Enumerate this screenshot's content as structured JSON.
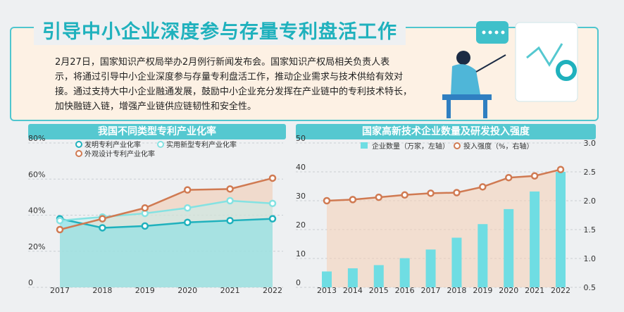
{
  "header": {
    "title": "引导中小企业深度参与存量专利盘活工作",
    "paragraph_lines": [
      "2月27日，国家知识产权局举办2月例行新闻发布会。国家知识产权局相关负责人表",
      "示，将通过引导中小企业深度参与存量专利盘活工作，推动企业需求与技术供给有效对",
      "接。通过支持大中小企业融通发展，鼓励中小企业充分发挥在产业链中的专利技术特长，",
      "加快融链入链，增强产业链供应链韧性和安全性。"
    ]
  },
  "colors": {
    "teal": "#1fb1bd",
    "banner": "#55c8d0",
    "orange_line": "#d07a52",
    "light_teal_line": "#84e2e2",
    "bar": "#6fdde3",
    "card_bg": "#fdf1e4"
  },
  "chart_data": [
    {
      "type": "line",
      "title": "我国不同类型专利产业化率",
      "x": [
        "2017",
        "2018",
        "2019",
        "2020",
        "2021",
        "2022"
      ],
      "yticks": [
        "0",
        "20%",
        "40%",
        "60%",
        "80%"
      ],
      "ylim": [
        0,
        80
      ],
      "legend": "top",
      "series": [
        {
          "name": "发明专利产业化率",
          "values": [
            38,
            33,
            34,
            36,
            37,
            38
          ]
        },
        {
          "name": "实用新型专利产业化率",
          "values": [
            37,
            39,
            41,
            44,
            48,
            46.5
          ]
        },
        {
          "name": "外观设计专利产业化率",
          "values": [
            32,
            38,
            44,
            54,
            54.5,
            60.5
          ]
        }
      ]
    },
    {
      "type": "bar",
      "title": "国家高新技术企业数量及研发投入强度",
      "categories": [
        "2013",
        "2014",
        "2015",
        "2016",
        "2017",
        "2018",
        "2019",
        "2020",
        "2021",
        "2022"
      ],
      "left_axis_ticks": [
        "0",
        "10",
        "20",
        "30",
        "40",
        "50"
      ],
      "right_axis_ticks": [
        "0.5",
        "1.0",
        "1.5",
        "2.0",
        "2.5",
        "3.0"
      ],
      "ylim_left": [
        0,
        50
      ],
      "ylim_right": [
        0.5,
        3.0
      ],
      "legend": "top",
      "series": [
        {
          "name": "企业数量（万家，左轴）",
          "type": "bar",
          "axis": "left",
          "values": [
            5.5,
            6.6,
            7.7,
            10.1,
            13.1,
            17.2,
            21.9,
            27.1,
            33.2,
            40
          ]
        },
        {
          "name": "投入强度（%，右轴）",
          "type": "line",
          "axis": "right",
          "values": [
            2.0,
            2.02,
            2.06,
            2.1,
            2.13,
            2.14,
            2.24,
            2.4,
            2.43,
            2.54
          ]
        }
      ]
    }
  ]
}
